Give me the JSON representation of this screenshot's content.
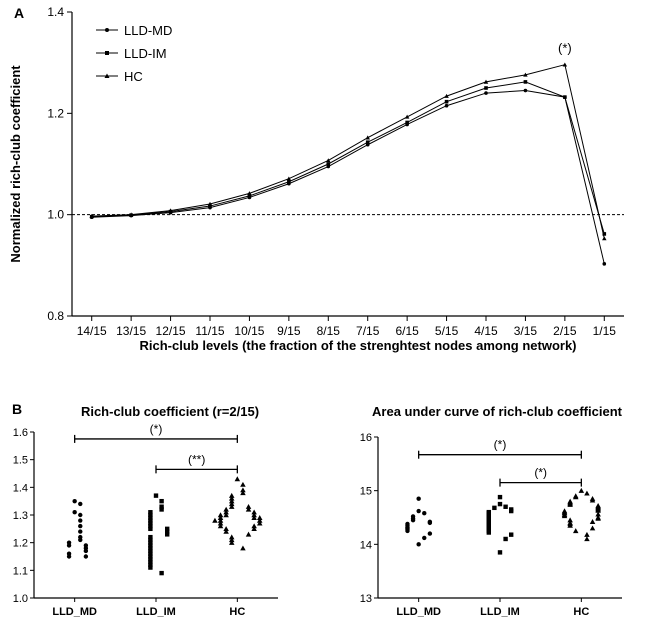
{
  "chart_data": [
    {
      "type": "line",
      "panel_label": "A",
      "title": "",
      "xlabel": "Rich-club levels (the fraction of the strenghtest nodes among network)",
      "ylabel": "Normalized rich-club coefficient",
      "categories": [
        "14/15",
        "13/15",
        "12/15",
        "11/15",
        "10/15",
        "9/15",
        "8/15",
        "7/15",
        "6/15",
        "5/15",
        "4/15",
        "3/15",
        "2/15",
        "1/15"
      ],
      "ylim": [
        0.8,
        1.4
      ],
      "yticks": [
        "0.8",
        "1.0",
        "1.2",
        "1.4"
      ],
      "reference_line": 1.0,
      "legend_position": "top-left",
      "series": [
        {
          "name": "LLD-MD",
          "marker": "circle",
          "values": [
            0.995,
            0.998,
            1.004,
            1.014,
            1.034,
            1.061,
            1.095,
            1.138,
            1.178,
            1.215,
            1.24,
            1.245,
            1.232,
            0.903
          ]
        },
        {
          "name": "LLD-IM",
          "marker": "square",
          "values": [
            0.996,
            0.999,
            1.006,
            1.017,
            1.037,
            1.065,
            1.1,
            1.143,
            1.182,
            1.223,
            1.25,
            1.262,
            1.232,
            0.962
          ]
        },
        {
          "name": "HC",
          "marker": "triangle",
          "values": [
            0.997,
            1.0,
            1.008,
            1.021,
            1.042,
            1.071,
            1.107,
            1.152,
            1.193,
            1.234,
            1.262,
            1.276,
            1.296,
            0.953
          ]
        }
      ],
      "annotations": [
        {
          "category": "2/15",
          "text": "(*)"
        }
      ]
    },
    {
      "type": "scatter",
      "panel_label": "B",
      "title": "Rich-club coefficient (r=2/15)",
      "categories": [
        "LLD_MD",
        "LLD_IM",
        "HC"
      ],
      "ylim": [
        1.0,
        1.6
      ],
      "yticks": [
        "1.0",
        "1.1",
        "1.2",
        "1.3",
        "1.4",
        "1.5",
        "1.6"
      ],
      "series": [
        {
          "name": "LLD_MD",
          "marker": "circle",
          "values": [
            1.35,
            1.34,
            1.31,
            1.3,
            1.28,
            1.26,
            1.24,
            1.22,
            1.21,
            1.2,
            1.19,
            1.19,
            1.18,
            1.17,
            1.16,
            1.15,
            1.15
          ]
        },
        {
          "name": "LLD_IM",
          "marker": "square",
          "values": [
            1.37,
            1.35,
            1.33,
            1.32,
            1.31,
            1.3,
            1.29,
            1.28,
            1.27,
            1.26,
            1.25,
            1.25,
            1.24,
            1.23,
            1.22,
            1.21,
            1.2,
            1.19,
            1.18,
            1.17,
            1.16,
            1.15,
            1.14,
            1.13,
            1.12,
            1.11,
            1.09
          ]
        },
        {
          "name": "HC",
          "marker": "triangle",
          "values": [
            1.43,
            1.41,
            1.39,
            1.38,
            1.37,
            1.36,
            1.35,
            1.34,
            1.33,
            1.33,
            1.32,
            1.32,
            1.31,
            1.31,
            1.3,
            1.3,
            1.3,
            1.29,
            1.29,
            1.29,
            1.28,
            1.28,
            1.28,
            1.27,
            1.27,
            1.26,
            1.26,
            1.25,
            1.25,
            1.24,
            1.23,
            1.22,
            1.21,
            1.2,
            1.18
          ]
        }
      ],
      "significance": [
        {
          "from": "LLD_MD",
          "to": "HC",
          "y": 1.575,
          "text": "(*)"
        },
        {
          "from": "LLD_IM",
          "to": "HC",
          "y": 1.465,
          "text": "(**)"
        }
      ]
    },
    {
      "type": "scatter",
      "title": "Area under curve of rich-club coefficient",
      "categories": [
        "LLD_MD",
        "LLD_IM",
        "HC"
      ],
      "ylim": [
        13,
        16
      ],
      "yticks": [
        "13",
        "14",
        "15",
        "16"
      ],
      "series": [
        {
          "name": "LLD_MD",
          "marker": "circle",
          "values": [
            14.85,
            14.62,
            14.58,
            14.52,
            14.48,
            14.45,
            14.42,
            14.4,
            14.38,
            14.35,
            14.32,
            14.3,
            14.28,
            14.25,
            14.2,
            14.12,
            14.0
          ]
        },
        {
          "name": "LLD_IM",
          "marker": "square",
          "values": [
            14.88,
            14.75,
            14.7,
            14.68,
            14.65,
            14.62,
            14.6,
            14.58,
            14.55,
            14.52,
            14.5,
            14.48,
            14.45,
            14.42,
            14.4,
            14.38,
            14.35,
            14.32,
            14.3,
            14.28,
            14.25,
            14.22,
            14.18,
            14.1,
            13.85
          ]
        },
        {
          "name": "HC",
          "marker": "triangle",
          "values": [
            15.0,
            14.95,
            14.9,
            14.88,
            14.85,
            14.82,
            14.8,
            14.78,
            14.76,
            14.74,
            14.72,
            14.7,
            14.68,
            14.67,
            14.65,
            14.63,
            14.62,
            14.6,
            14.58,
            14.56,
            14.55,
            14.53,
            14.5,
            14.48,
            14.45,
            14.42,
            14.4,
            14.38,
            14.35,
            14.3,
            14.25,
            14.18,
            14.1
          ]
        }
      ],
      "significance": [
        {
          "from": "LLD_MD",
          "to": "HC",
          "y": 15.67,
          "text": "(*)"
        },
        {
          "from": "LLD_IM",
          "to": "HC",
          "y": 15.15,
          "text": "(*)"
        }
      ]
    }
  ]
}
